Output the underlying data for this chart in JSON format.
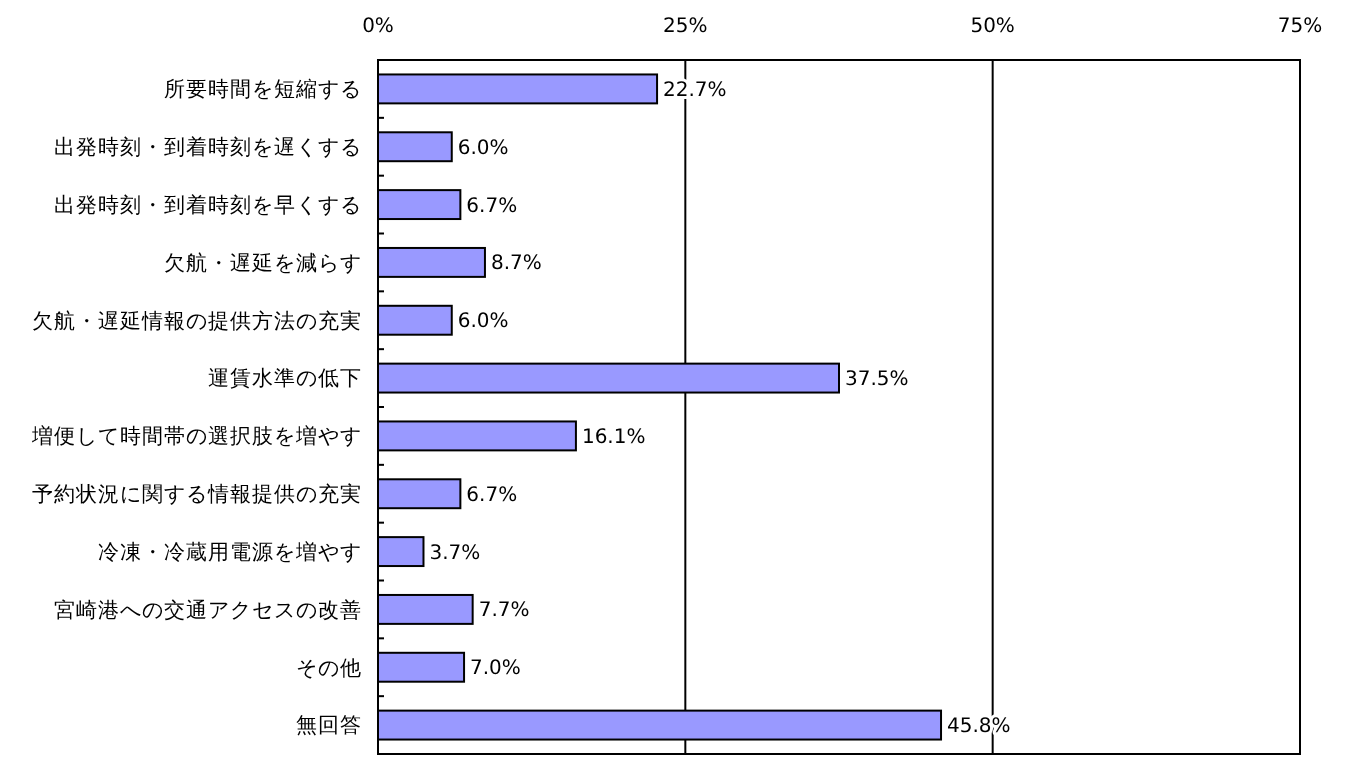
{
  "chart_data": {
    "type": "bar",
    "orientation": "horizontal",
    "categories": [
      "所要時間を短縮する",
      "出発時刻・到着時刻を遅くする",
      "出発時刻・到着時刻を早くする",
      "欠航・遅延を減らす",
      "欠航・遅延情報の提供方法の充実",
      "運賃水準の低下",
      "増便して時間帯の選択肢を増やす",
      "予約状況に関する情報提供の充実",
      "冷凍・冷蔵用電源を増やす",
      "宮崎港への交通アクセスの改善",
      "その他",
      "無回答"
    ],
    "values": [
      22.7,
      6.0,
      6.7,
      8.7,
      6.0,
      37.5,
      16.1,
      6.7,
      3.7,
      7.7,
      7.0,
      45.8
    ],
    "value_labels": [
      "22.7%",
      "6.0%",
      "6.7%",
      "8.7%",
      "6.0%",
      "37.5%",
      "16.1%",
      "6.7%",
      "3.7%",
      "7.7%",
      "7.0%",
      "45.8%"
    ],
    "color": "#9999ff",
    "xlim": [
      0,
      75
    ],
    "xticks": [
      {
        "value": 0,
        "label": "0%"
      },
      {
        "value": 25,
        "label": "25%"
      },
      {
        "value": 50,
        "label": "50%"
      },
      {
        "value": 75,
        "label": "75%"
      }
    ],
    "grid": "x"
  }
}
